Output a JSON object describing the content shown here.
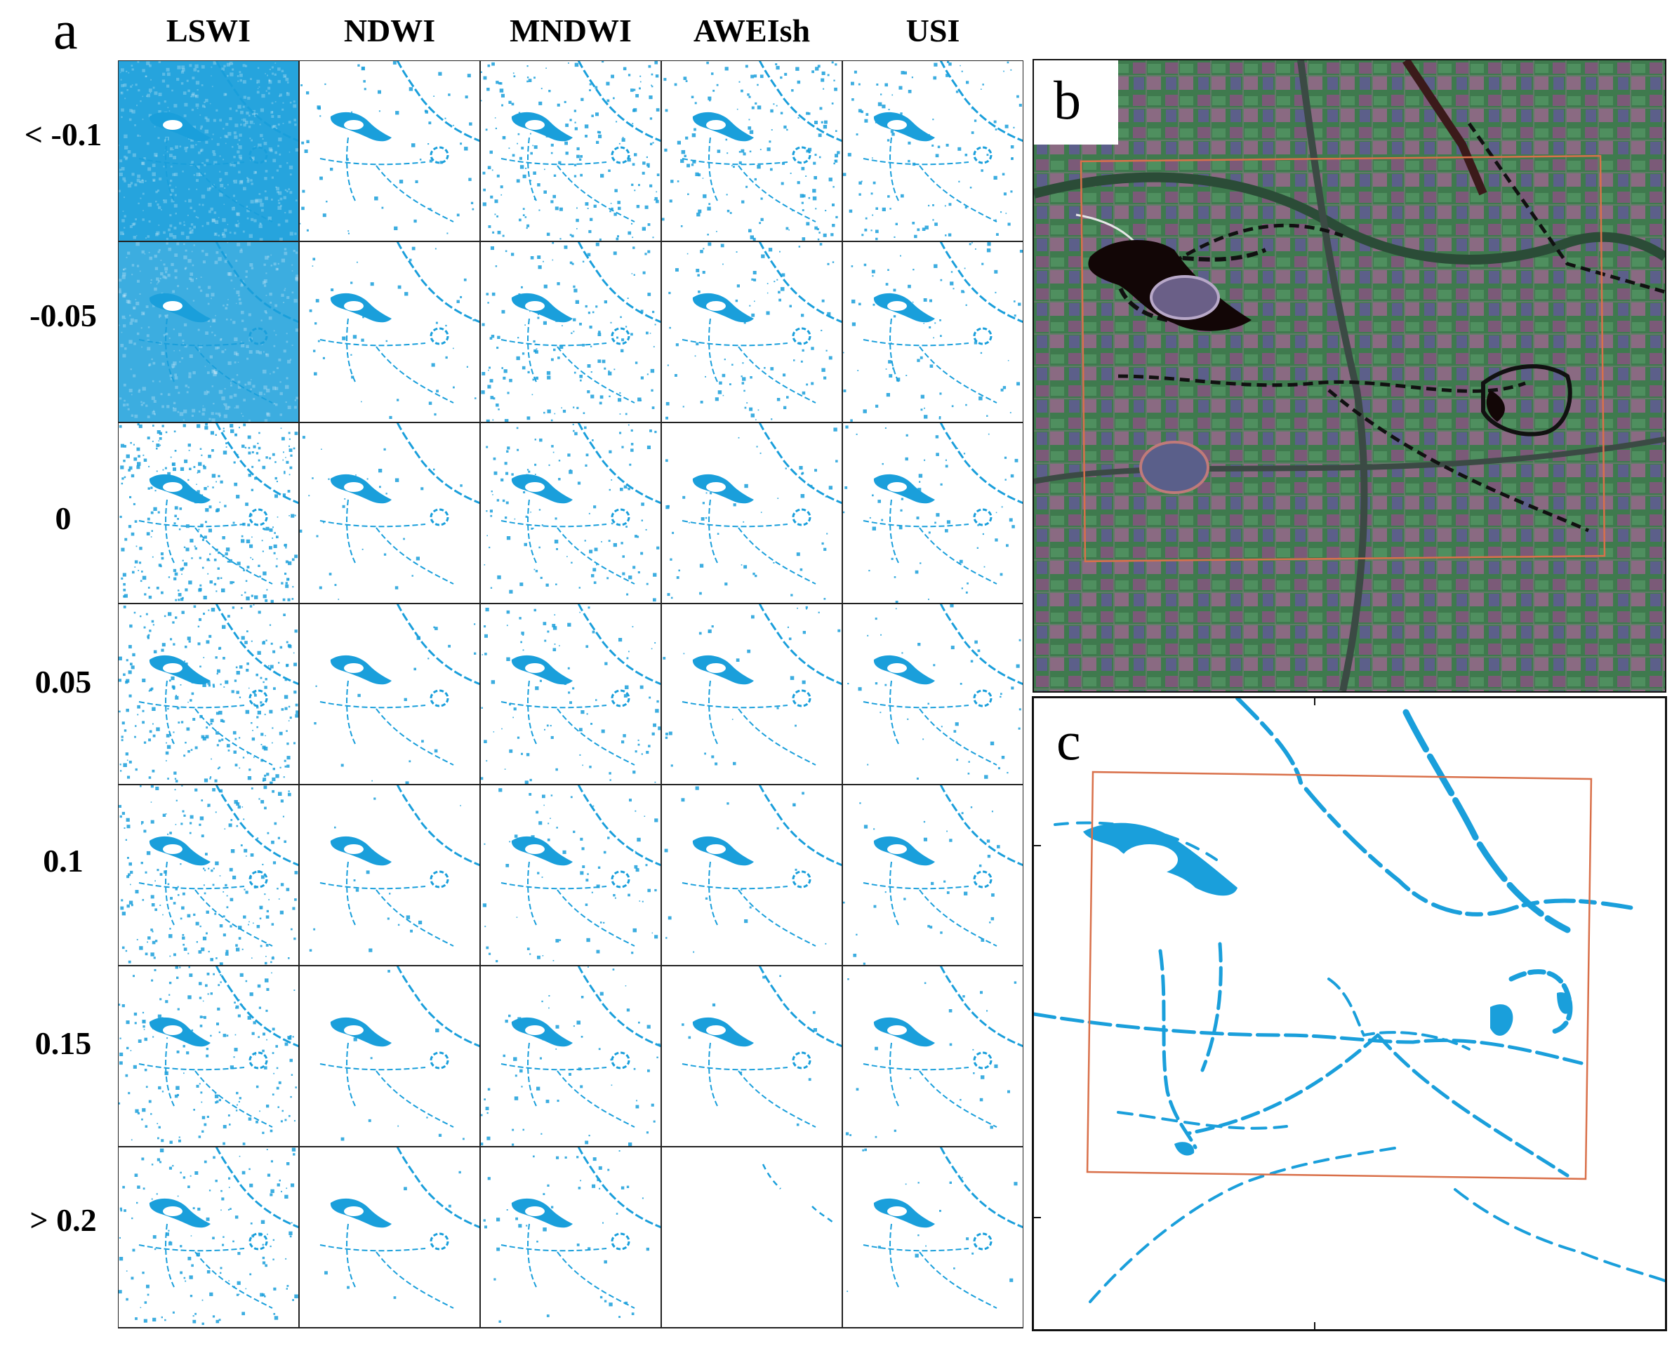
{
  "panels": {
    "a": {
      "letter": "a"
    },
    "b": {
      "letter": "b"
    },
    "c": {
      "letter": "c"
    }
  },
  "columns": [
    "LSWI",
    "NDWI",
    "MNDWI",
    "AWEIsh",
    "USI"
  ],
  "rows": [
    "< -0.1",
    "-0.05",
    "0",
    "0.05",
    "0.1",
    "0.15",
    "> 0.2"
  ],
  "colors": {
    "water": "#1a9fdb",
    "roi_box": "#d9704a",
    "grid_line": "#222222"
  }
}
